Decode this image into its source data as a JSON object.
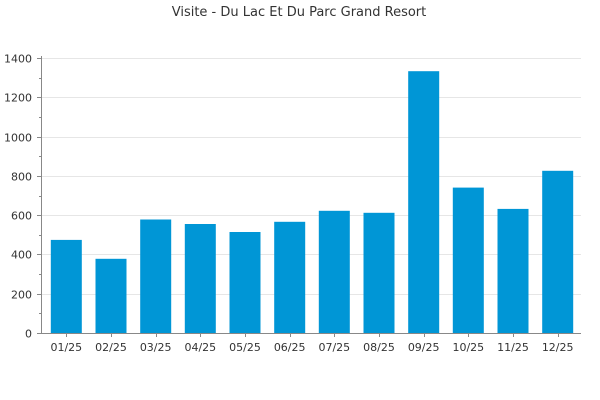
{
  "chart_data": {
    "type": "bar",
    "title": "Visite - Du Lac Et Du Parc Grand Resort",
    "xlabel": "",
    "ylabel": "",
    "categories": [
      "01/25",
      "02/25",
      "03/25",
      "04/25",
      "05/25",
      "06/25",
      "07/25",
      "08/25",
      "09/25",
      "10/25",
      "11/25",
      "12/25"
    ],
    "values": [
      474,
      378,
      578,
      555,
      514,
      566,
      622,
      612,
      1333,
      740,
      632,
      826
    ],
    "ylim": [
      0,
      1400
    ],
    "yticks": [
      0,
      200,
      400,
      600,
      800,
      1000,
      1200,
      1400
    ],
    "grid": true,
    "bar_color": "#0096d6"
  }
}
